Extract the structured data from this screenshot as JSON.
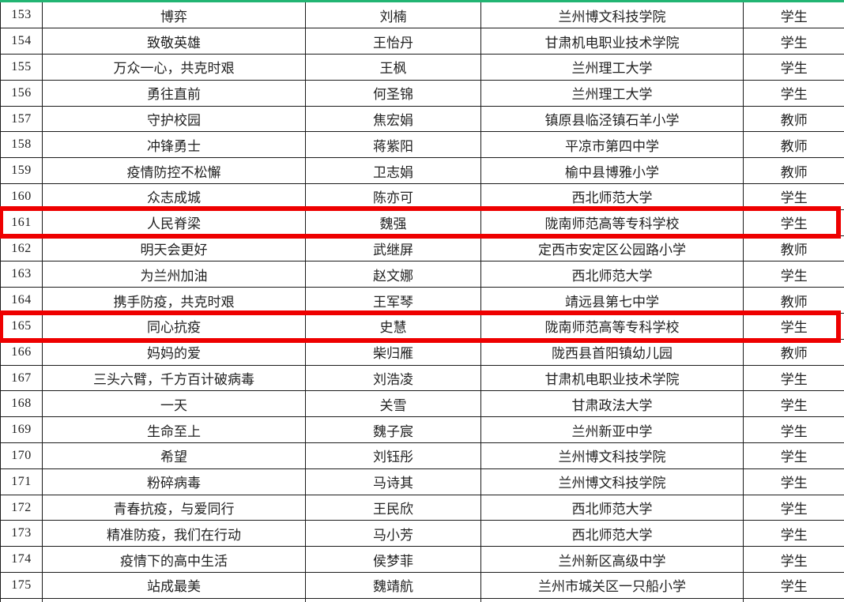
{
  "colors": {
    "top_strip_green": "#22B573",
    "highlight_red": "#EE0000",
    "grid_line": "#1b1b1b",
    "text": "#222222"
  },
  "table": {
    "rows": [
      {
        "no": "153",
        "title": "博弈",
        "name": "刘楠",
        "school": "兰州博文科技学院",
        "role": "学生",
        "highlighted": false
      },
      {
        "no": "154",
        "title": "致敬英雄",
        "name": "王怡丹",
        "school": "甘肃机电职业技术学院",
        "role": "学生",
        "highlighted": false
      },
      {
        "no": "155",
        "title": "万众一心，共克时艰",
        "name": "王枫",
        "school": "兰州理工大学",
        "role": "学生",
        "highlighted": false
      },
      {
        "no": "156",
        "title": "勇往直前",
        "name": "何圣锦",
        "school": "兰州理工大学",
        "role": "学生",
        "highlighted": false
      },
      {
        "no": "157",
        "title": "守护校园",
        "name": "焦宏娟",
        "school": "镇原县临泾镇石羊小学",
        "role": "教师",
        "highlighted": false
      },
      {
        "no": "158",
        "title": "冲锋勇士",
        "name": "蒋紫阳",
        "school": "平凉市第四中学",
        "role": "教师",
        "highlighted": false
      },
      {
        "no": "159",
        "title": "疫情防控不松懈",
        "name": "卫志娟",
        "school": "榆中县博雅小学",
        "role": "教师",
        "highlighted": false
      },
      {
        "no": "160",
        "title": "众志成城",
        "name": "陈亦可",
        "school": "西北师范大学",
        "role": "学生",
        "highlighted": false
      },
      {
        "no": "161",
        "title": "人民脊梁",
        "name": "魏强",
        "school": "陇南师范高等专科学校",
        "role": "学生",
        "highlighted": true
      },
      {
        "no": "162",
        "title": "明天会更好",
        "name": "武继屏",
        "school": "定西市安定区公园路小学",
        "role": "教师",
        "highlighted": false
      },
      {
        "no": "163",
        "title": "为兰州加油",
        "name": "赵文娜",
        "school": "西北师范大学",
        "role": "学生",
        "highlighted": false
      },
      {
        "no": "164",
        "title": "携手防疫，共克时艰",
        "name": "王军琴",
        "school": "靖远县第七中学",
        "role": "教师",
        "highlighted": false
      },
      {
        "no": "165",
        "title": "同心抗疫",
        "name": "史慧",
        "school": "陇南师范高等专科学校",
        "role": "学生",
        "highlighted": true
      },
      {
        "no": "166",
        "title": "妈妈的爱",
        "name": "柴归雁",
        "school": "陇西县首阳镇幼儿园",
        "role": "教师",
        "highlighted": false
      },
      {
        "no": "167",
        "title": "三头六臂，千方百计破病毒",
        "name": "刘浩凌",
        "school": "甘肃机电职业技术学院",
        "role": "学生",
        "highlighted": false
      },
      {
        "no": "168",
        "title": "一天",
        "name": "关雪",
        "school": "甘肃政法大学",
        "role": "学生",
        "highlighted": false
      },
      {
        "no": "169",
        "title": "生命至上",
        "name": "魏子宸",
        "school": "兰州新亚中学",
        "role": "学生",
        "highlighted": false
      },
      {
        "no": "170",
        "title": "希望",
        "name": "刘钰彤",
        "school": "兰州博文科技学院",
        "role": "学生",
        "highlighted": false
      },
      {
        "no": "171",
        "title": "粉碎病毒",
        "name": "马诗其",
        "school": "兰州博文科技学院",
        "role": "学生",
        "highlighted": false
      },
      {
        "no": "172",
        "title": "青春抗疫，与爱同行",
        "name": "王民欣",
        "school": "西北师范大学",
        "role": "学生",
        "highlighted": false
      },
      {
        "no": "173",
        "title": "精准防疫，我们在行动",
        "name": "马小芳",
        "school": "西北师范大学",
        "role": "学生",
        "highlighted": false
      },
      {
        "no": "174",
        "title": "疫情下的高中生活",
        "name": "侯梦菲",
        "school": "兰州新区高级中学",
        "role": "学生",
        "highlighted": false
      },
      {
        "no": "175",
        "title": "站成最美",
        "name": "魏靖航",
        "school": "兰州市城关区一只船小学",
        "role": "学生",
        "highlighted": false
      }
    ]
  }
}
